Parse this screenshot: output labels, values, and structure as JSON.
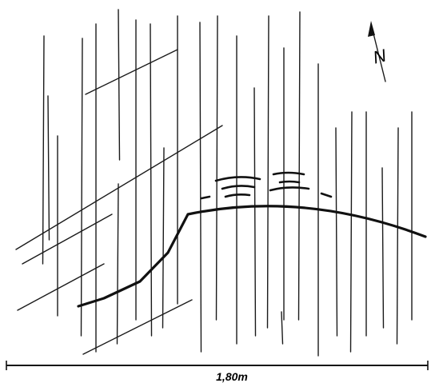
{
  "scale_label": "1,80m",
  "north_label": "N"
}
